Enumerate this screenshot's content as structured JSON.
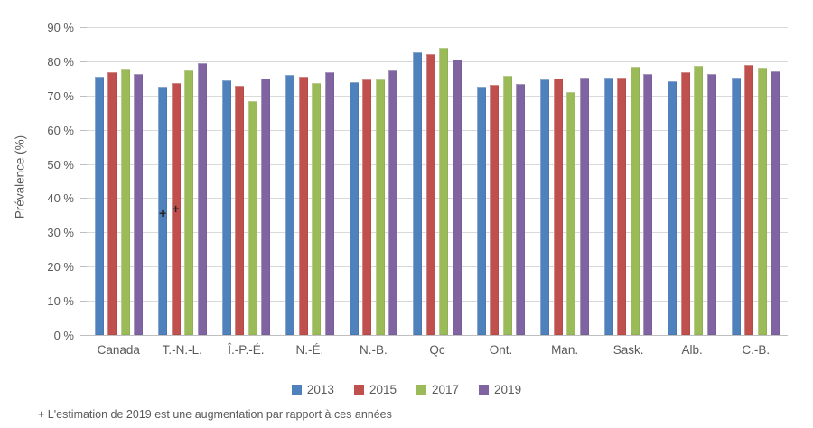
{
  "chart_data": {
    "type": "bar",
    "title": "",
    "xlabel": "",
    "ylabel": "Prévalence (%)",
    "categories": [
      "Canada",
      "T.-N.-L.",
      "Î.-P.-É.",
      "N.-É.",
      "N.-B.",
      "Qc",
      "Ont.",
      "Man.",
      "Sask.",
      "Alb.",
      "C.-B."
    ],
    "series": [
      {
        "name": "2013",
        "color": "#4F81BD",
        "values": [
          75.6,
          72.6,
          74.4,
          75.9,
          73.8,
          82.5,
          72.7,
          74.8,
          75.2,
          74.3,
          75.1
        ]
      },
      {
        "name": "2015",
        "color": "#C0504D",
        "values": [
          76.7,
          73.7,
          72.9,
          75.6,
          74.8,
          82.1,
          73.2,
          75.0,
          75.2,
          76.9,
          79.0
        ]
      },
      {
        "name": "2017",
        "color": "#9BBB59",
        "values": [
          77.9,
          77.3,
          68.3,
          73.7,
          74.8,
          84.0,
          75.7,
          71.1,
          78.3,
          78.6,
          78.2
        ]
      },
      {
        "name": "2019",
        "color": "#8064A2",
        "values": [
          76.4,
          79.4,
          74.9,
          76.8,
          77.3,
          80.5,
          73.3,
          75.3,
          76.4,
          76.2,
          77.0
        ]
      }
    ],
    "ylim": [
      0,
      90
    ],
    "ytick_step": 10,
    "ytick_suffix": " %",
    "grid": true,
    "legend_position": "bottom",
    "annotations": [
      {
        "text": "+",
        "category_index": 1,
        "series_index": 0,
        "y": 36.0
      },
      {
        "text": "+",
        "category_index": 1,
        "series_index": 1,
        "y": 37.3
      }
    ]
  },
  "footnote": "+ L'estimation de 2019 est une augmentation par rapport à ces années",
  "colors": {
    "grid": "#D9D9D9",
    "axis": "#BFBFBF",
    "text": "#595959"
  }
}
